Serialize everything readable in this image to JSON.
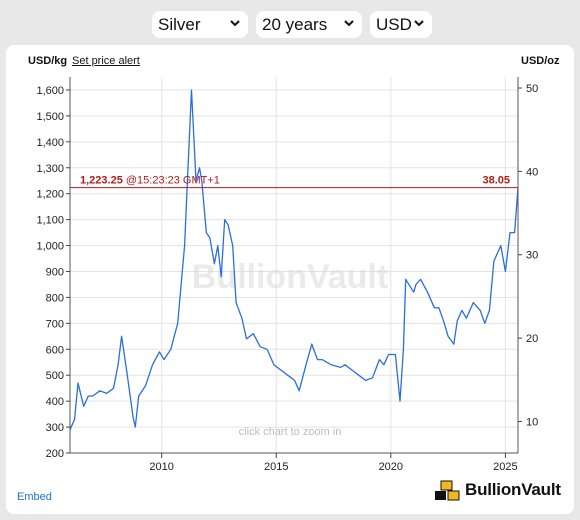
{
  "selectors": {
    "metal": "Silver",
    "period": "20 years",
    "currency": "USD"
  },
  "header": {
    "left_unit": "USD/kg",
    "alert_link": "Set price alert",
    "right_unit": "USD/oz"
  },
  "price_line": {
    "value": "1,223.25",
    "time": "@15:23:23 GMT+1",
    "oz_value": "38.05",
    "kg": 1223.25
  },
  "watermark": "BullionVault",
  "zoom_hint": "click chart to zoom in",
  "embed_label": "Embed",
  "brand": "BullionVault",
  "colors": {
    "line": "#2a6fdb",
    "price_line": "#b31b1b",
    "grid": "#e3e3e3",
    "brand_gold": "#f2b822"
  },
  "chart_data": {
    "type": "line",
    "title": "",
    "xlabel": "",
    "ylabel": "USD/kg",
    "y2label": "USD/oz",
    "xlim": [
      2006.0,
      2025.55
    ],
    "ylim": [
      200,
      1650
    ],
    "y2lim": [
      6.22,
      51.32
    ],
    "x_ticks": [
      "2010",
      "2015",
      "2020",
      "2025"
    ],
    "y_ticks": [
      "200",
      "300",
      "400",
      "500",
      "600",
      "700",
      "800",
      "900",
      "1,000",
      "1,100",
      "1,200",
      "1,300",
      "1,400",
      "1,500",
      "1,600"
    ],
    "y2_ticks": [
      "10",
      "20",
      "30",
      "40",
      "50"
    ],
    "grid": true,
    "series": [
      {
        "x": [
          2006.0,
          2006.2,
          2006.35,
          2006.6,
          2006.8,
          2007.0,
          2007.3,
          2007.6,
          2007.9,
          2008.1,
          2008.25,
          2008.5,
          2008.75,
          2008.85,
          2009.0,
          2009.3,
          2009.6,
          2009.9,
          2010.1,
          2010.4,
          2010.7,
          2010.9,
          2011.0,
          2011.15,
          2011.3,
          2011.5,
          2011.65,
          2011.75,
          2011.95,
          2012.1,
          2012.3,
          2012.45,
          2012.6,
          2012.75,
          2012.9,
          2013.1,
          2013.25,
          2013.5,
          2013.7,
          2014.0,
          2014.3,
          2014.6,
          2014.9,
          2015.2,
          2015.5,
          2015.8,
          2016.0,
          2016.3,
          2016.55,
          2016.8,
          2017.0,
          2017.4,
          2017.8,
          2018.0,
          2018.3,
          2018.6,
          2018.9,
          2019.2,
          2019.5,
          2019.7,
          2019.9,
          2020.05,
          2020.2,
          2020.4,
          2020.55,
          2020.65,
          2021.0,
          2021.1,
          2021.3,
          2021.6,
          2021.9,
          2022.1,
          2022.3,
          2022.5,
          2022.75,
          2022.9,
          2023.1,
          2023.3,
          2023.6,
          2023.9,
          2024.1,
          2024.3,
          2024.5,
          2024.8,
          2025.0,
          2025.2,
          2025.4,
          2025.55
        ],
        "y": [
          290,
          330,
          470,
          380,
          420,
          420,
          440,
          430,
          450,
          540,
          650,
          500,
          340,
          300,
          420,
          460,
          540,
          590,
          560,
          600,
          700,
          900,
          1000,
          1300,
          1600,
          1250,
          1300,
          1250,
          1050,
          1030,
          930,
          1000,
          880,
          1100,
          1080,
          1000,
          780,
          720,
          640,
          660,
          610,
          600,
          540,
          520,
          500,
          480,
          440,
          540,
          620,
          560,
          560,
          540,
          530,
          540,
          520,
          500,
          480,
          490,
          560,
          540,
          580,
          580,
          580,
          400,
          600,
          870,
          820,
          850,
          870,
          820,
          760,
          760,
          710,
          650,
          620,
          710,
          750,
          720,
          780,
          750,
          700,
          750,
          940,
          1000,
          900,
          1050,
          1050,
          1223.25
        ]
      }
    ]
  }
}
